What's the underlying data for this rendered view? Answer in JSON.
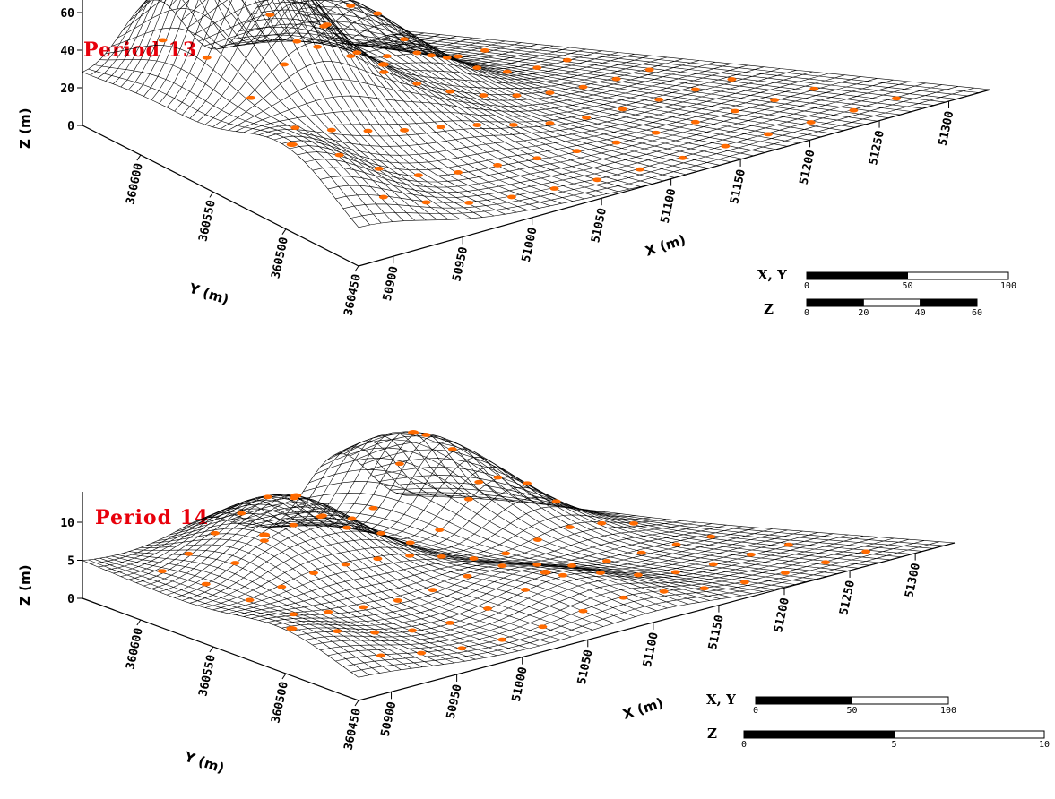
{
  "colors": {
    "title": "#e8000b",
    "marker": "#ff6a00",
    "mesh": "#000000",
    "background": "#ffffff"
  },
  "chart_data": [
    {
      "type": "surface3d",
      "title": "Period 13",
      "xlabel": "X (m)",
      "ylabel": "Y (m)",
      "zlabel": "Z (m)",
      "x_ticks": [
        "50900",
        "50950",
        "51000",
        "51050",
        "51100",
        "51150",
        "51200",
        "51250",
        "51300"
      ],
      "y_ticks": [
        "360450",
        "360500",
        "360550",
        "360600"
      ],
      "z_ticks": [
        "0",
        "20",
        "40",
        "60"
      ],
      "xlim": [
        50875,
        51330
      ],
      "ylim": [
        360450,
        360640
      ],
      "zlim": [
        0,
        70
      ],
      "peaks": [
        {
          "x": 50980,
          "y": 360600,
          "z": 66
        },
        {
          "x": 50960,
          "y": 360580,
          "z": 40
        },
        {
          "x": 51140,
          "y": 360620,
          "z": 46
        },
        {
          "x": 50880,
          "y": 360500,
          "z": 30
        },
        {
          "x": 51060,
          "y": 360560,
          "z": 22
        }
      ],
      "scale_bars": [
        {
          "label": "X, Y",
          "ticks": [
            "0",
            "50",
            "100"
          ]
        },
        {
          "label": "Z",
          "ticks": [
            "0",
            "20",
            "40",
            "60"
          ]
        }
      ]
    },
    {
      "type": "surface3d",
      "title": "Period 14",
      "xlabel": "X (m)",
      "ylabel": "Y (m)",
      "zlabel": "Z (m)",
      "x_ticks": [
        "50900",
        "50950",
        "51000",
        "51050",
        "51100",
        "51150",
        "51200",
        "51250",
        "51300"
      ],
      "y_ticks": [
        "360450",
        "360500",
        "360550",
        "360600"
      ],
      "z_ticks": [
        "0",
        "5",
        "10"
      ],
      "xlim": [
        50875,
        51330
      ],
      "ylim": [
        360450,
        360640
      ],
      "zlim": [
        0,
        14
      ],
      "peaks": [
        {
          "x": 51060,
          "y": 360600,
          "z": 9
        },
        {
          "x": 50980,
          "y": 360580,
          "z": 5.5
        },
        {
          "x": 51230,
          "y": 360610,
          "z": 13
        },
        {
          "x": 51100,
          "y": 360500,
          "z": 4
        },
        {
          "x": 50880,
          "y": 360500,
          "z": 3
        }
      ],
      "scale_bars": [
        {
          "label": "X, Y",
          "ticks": [
            "0",
            "50",
            "100"
          ]
        },
        {
          "label": "Z",
          "ticks": [
            "0",
            "5",
            "10"
          ]
        }
      ]
    }
  ]
}
